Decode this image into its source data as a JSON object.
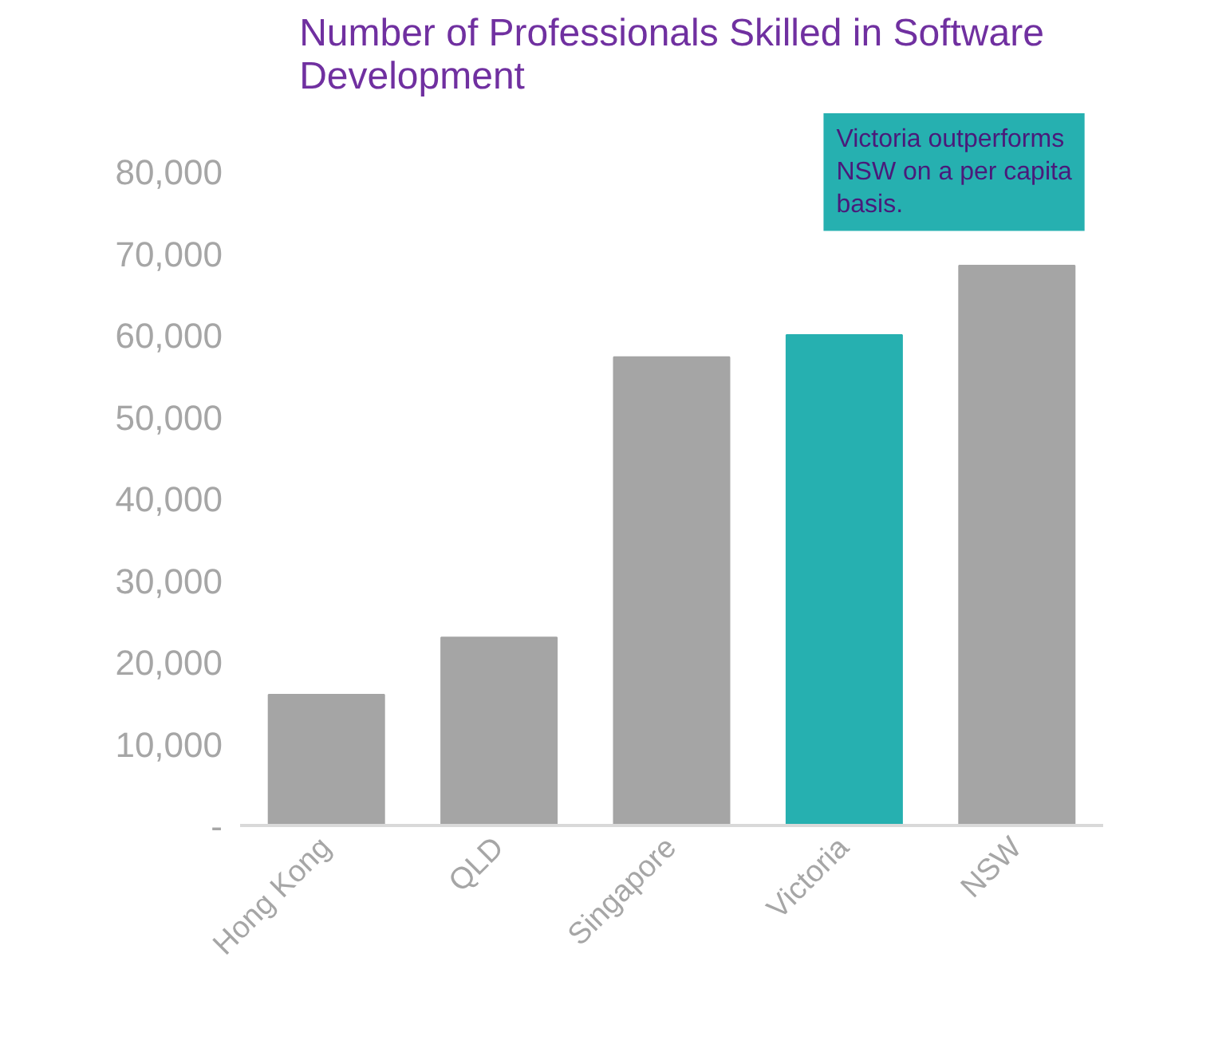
{
  "chart_data": {
    "type": "bar",
    "title": "Number of Professionals Skilled in Software Development",
    "categories": [
      "Hong Kong",
      "QLD",
      "Singapore",
      "Victoria",
      "NSW"
    ],
    "values": [
      16000,
      23000,
      57300,
      60000,
      68500
    ],
    "colors": [
      "#a5a5a5",
      "#a5a5a5",
      "#a5a5a5",
      "#26b0b0",
      "#a5a5a5"
    ],
    "ylim": [
      0,
      88000
    ],
    "yticks": [
      {
        "value": 0,
        "label": "-"
      },
      {
        "value": 10000,
        "label": "10,000"
      },
      {
        "value": 20000,
        "label": "20,000"
      },
      {
        "value": 30000,
        "label": "30,000"
      },
      {
        "value": 40000,
        "label": "40,000"
      },
      {
        "value": 50000,
        "label": "50,000"
      },
      {
        "value": 60000,
        "label": "60,000"
      },
      {
        "value": 70000,
        "label": "70,000"
      },
      {
        "value": 80000,
        "label": "80,000"
      }
    ],
    "grid": false,
    "annotations": [
      "Victoria outperforms NSW on a per capita basis."
    ]
  }
}
